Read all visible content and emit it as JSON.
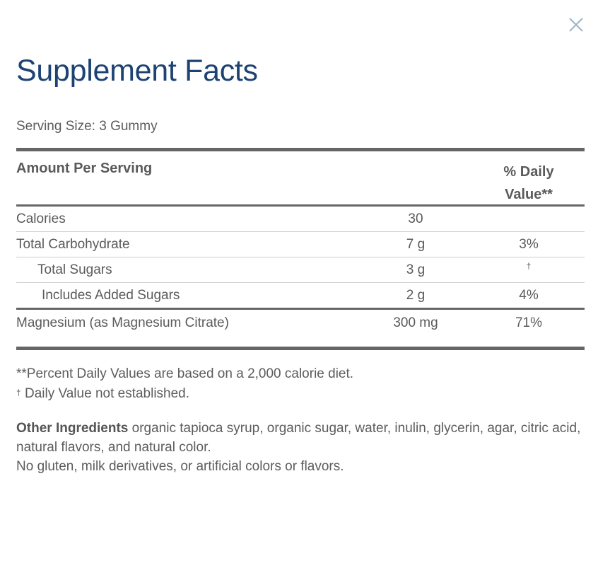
{
  "modal": {
    "close_icon": "close-icon",
    "title": "Supplement Facts",
    "serving_size": "Serving Size: 3 Gummy"
  },
  "table": {
    "header_amount": "Amount Per Serving",
    "header_dv_line1": "% Daily",
    "header_dv_line2": "Value**",
    "rows": [
      {
        "name": "Calories",
        "amount": "30",
        "dv": ""
      },
      {
        "name": "Total Carbohydrate",
        "amount": "7 g",
        "dv": "3%"
      },
      {
        "name": "Total Sugars",
        "amount": "3 g",
        "dv": "†"
      },
      {
        "name": "Includes Added Sugars",
        "amount": "2 g",
        "dv": "4%"
      },
      {
        "name": "Magnesium (as Magnesium Citrate)",
        "amount": "300 mg",
        "dv": "71%"
      }
    ]
  },
  "footnotes": {
    "percent_note": "**Percent Daily Values are based on a 2,000 calorie diet.",
    "dagger_symbol": "†",
    "dagger_note": " Daily Value not established."
  },
  "other_ingredients": {
    "label": "Other Ingredients",
    "text": " organic tapioca syrup, organic sugar, water, inulin, glycerin, agar, citric acid, natural flavors, and natural color.",
    "allergen_note": "No gluten, milk derivatives, or artificial colors or flavors."
  },
  "colors": {
    "title": "#1d4373",
    "close_icon": "#9fb4c8",
    "rule": "#666666",
    "text": "#5a5a5a"
  }
}
